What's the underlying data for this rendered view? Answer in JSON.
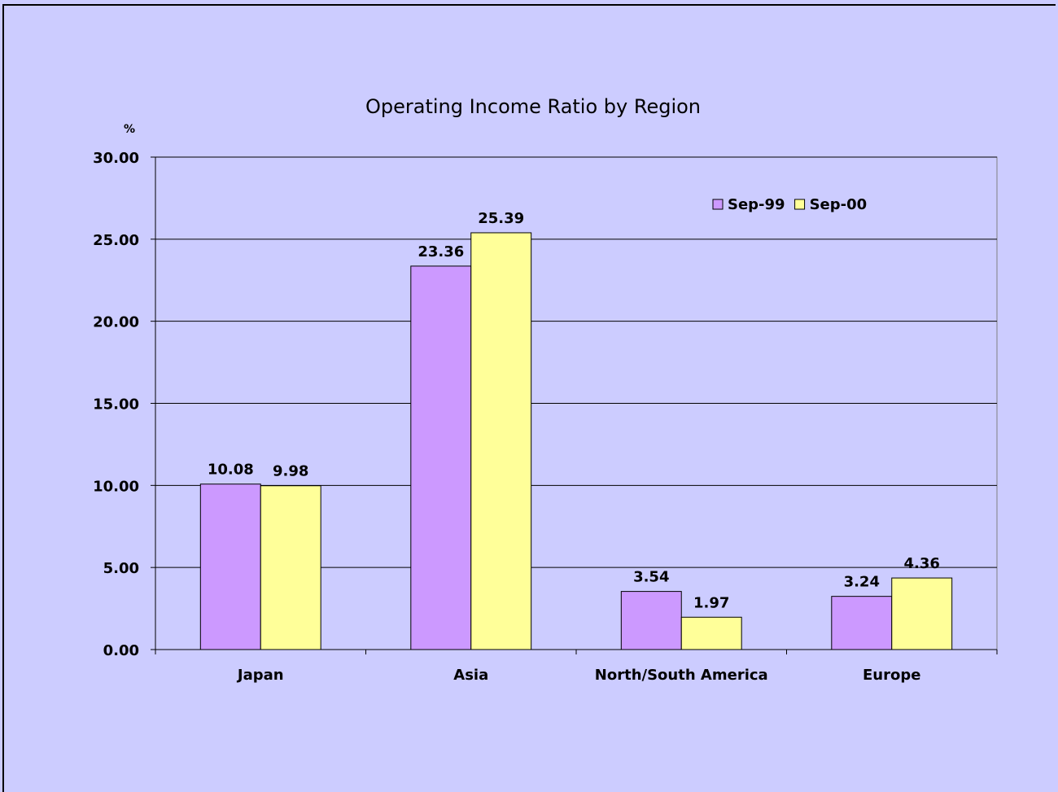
{
  "chart_data": {
    "type": "bar",
    "title": "Operating Income Ratio by Region",
    "y_label": "%",
    "categories": [
      "Japan",
      "Asia",
      "North/South America",
      "Europe"
    ],
    "series": [
      {
        "name": "Sep-99",
        "color": "#cc99ff",
        "values": [
          10.08,
          23.36,
          3.54,
          3.24
        ]
      },
      {
        "name": "Sep-00",
        "color": "#ffff99",
        "values": [
          9.98,
          25.39,
          1.97,
          4.36
        ]
      }
    ],
    "ylim": [
      0,
      30
    ],
    "yticks": [
      {
        "value": 0,
        "label": "0.00"
      },
      {
        "value": 5,
        "label": "5.00"
      },
      {
        "value": 10,
        "label": "10.00"
      },
      {
        "value": 15,
        "label": "15.00"
      },
      {
        "value": 20,
        "label": "20.00"
      },
      {
        "value": 25,
        "label": "25.00"
      },
      {
        "value": 30,
        "label": "30.00"
      }
    ],
    "grid": true,
    "legend": "upper right"
  }
}
